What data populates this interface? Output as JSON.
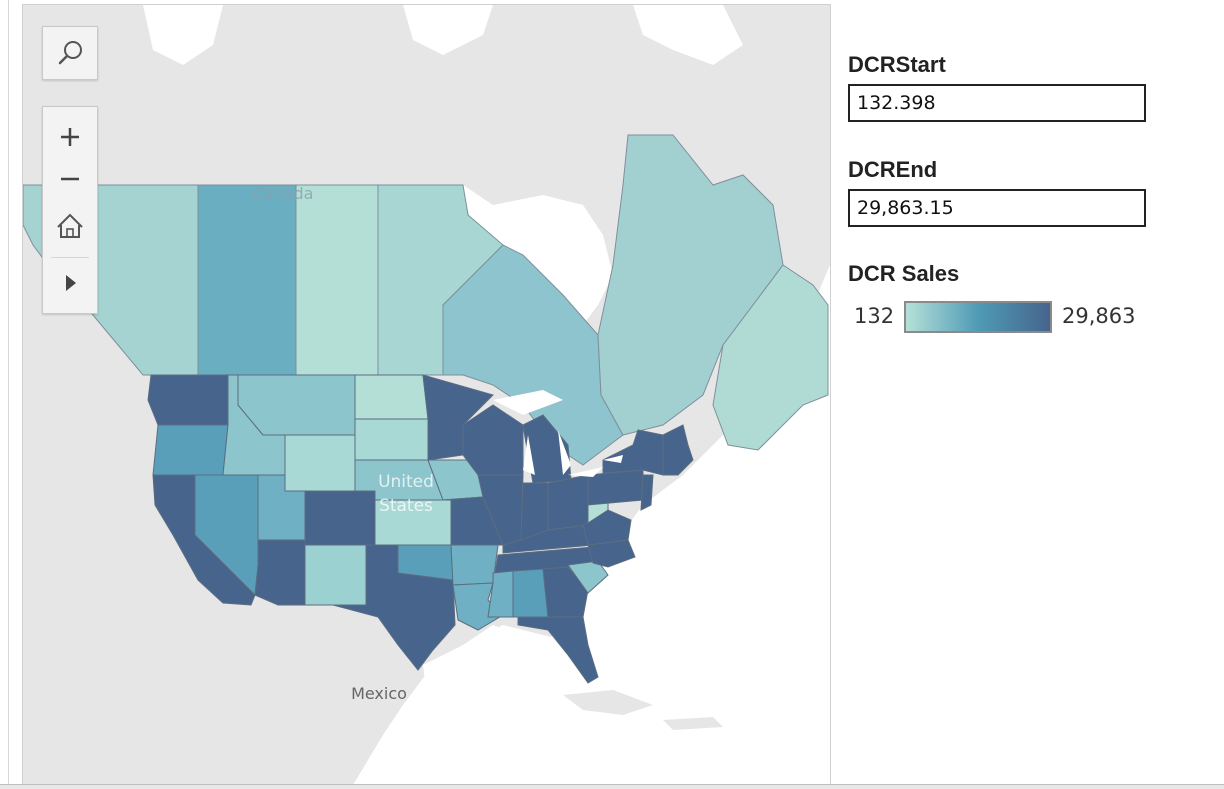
{
  "map": {
    "labels": {
      "canada": "Canada",
      "united_states": "United States",
      "us_line1": "United",
      "us_line2": "States",
      "mexico": "Mexico"
    },
    "color_scale": {
      "min_color": "#b6e0d8",
      "mid_color": "#4f9bb6",
      "max_color": "#46648c"
    },
    "regions": [
      {
        "id": "washington",
        "name": "Washington",
        "value": "high"
      },
      {
        "id": "oregon",
        "name": "Oregon",
        "value": "medium"
      },
      {
        "id": "california",
        "name": "California",
        "value": "high"
      },
      {
        "id": "nevada",
        "name": "Nevada",
        "value": "medium"
      },
      {
        "id": "idaho",
        "name": "Idaho",
        "value": "low"
      },
      {
        "id": "montana",
        "name": "Montana",
        "value": "low"
      },
      {
        "id": "wyoming",
        "name": "Wyoming",
        "value": "low"
      },
      {
        "id": "utah",
        "name": "Utah",
        "value": "medium"
      },
      {
        "id": "arizona",
        "name": "Arizona",
        "value": "high"
      },
      {
        "id": "colorado",
        "name": "Colorado",
        "value": "high"
      },
      {
        "id": "new-mexico",
        "name": "New Mexico",
        "value": "low"
      },
      {
        "id": "texas",
        "name": "Texas",
        "value": "high"
      },
      {
        "id": "north-dakota",
        "name": "North Dakota",
        "value": "low"
      },
      {
        "id": "south-dakota",
        "name": "South Dakota",
        "value": "low"
      },
      {
        "id": "nebraska",
        "name": "Nebraska",
        "value": "low"
      },
      {
        "id": "kansas",
        "name": "Kansas",
        "value": "low"
      },
      {
        "id": "oklahoma",
        "name": "Oklahoma",
        "value": "medium"
      },
      {
        "id": "minnesota",
        "name": "Minnesota",
        "value": "high"
      },
      {
        "id": "iowa",
        "name": "Iowa",
        "value": "low"
      },
      {
        "id": "missouri",
        "name": "Missouri",
        "value": "high"
      },
      {
        "id": "arkansas",
        "name": "Arkansas",
        "value": "low"
      },
      {
        "id": "louisiana",
        "name": "Louisiana",
        "value": "low"
      },
      {
        "id": "wisconsin",
        "name": "Wisconsin",
        "value": "high"
      },
      {
        "id": "illinois",
        "name": "Illinois",
        "value": "high"
      },
      {
        "id": "michigan",
        "name": "Michigan",
        "value": "high"
      },
      {
        "id": "indiana",
        "name": "Indiana",
        "value": "high"
      },
      {
        "id": "ohio",
        "name": "Ohio",
        "value": "high"
      },
      {
        "id": "kentucky",
        "name": "Kentucky",
        "value": "high"
      },
      {
        "id": "tennessee",
        "name": "Tennessee",
        "value": "high"
      },
      {
        "id": "mississippi",
        "name": "Mississippi",
        "value": "low"
      },
      {
        "id": "alabama",
        "name": "Alabama",
        "value": "medium"
      },
      {
        "id": "georgia",
        "name": "Georgia",
        "value": "high"
      },
      {
        "id": "florida",
        "name": "Florida",
        "value": "high"
      },
      {
        "id": "south-carolina",
        "name": "South Carolina",
        "value": "low"
      },
      {
        "id": "north-carolina",
        "name": "North Carolina",
        "value": "high"
      },
      {
        "id": "virginia",
        "name": "Virginia",
        "value": "high"
      },
      {
        "id": "west-virginia",
        "name": "West Virginia",
        "value": "low"
      },
      {
        "id": "pennsylvania",
        "name": "Pennsylvania",
        "value": "high"
      },
      {
        "id": "new-york",
        "name": "New York",
        "value": "high"
      },
      {
        "id": "new-jersey",
        "name": "New Jersey",
        "value": "high"
      },
      {
        "id": "new-england",
        "name": "New England",
        "value": "high"
      },
      {
        "id": "british-columbia",
        "name": "British Columbia",
        "value": "low"
      },
      {
        "id": "alberta",
        "name": "Alberta",
        "value": "medium"
      },
      {
        "id": "saskatchewan",
        "name": "Saskatchewan",
        "value": "low"
      },
      {
        "id": "manitoba",
        "name": "Manitoba",
        "value": "low"
      },
      {
        "id": "ontario",
        "name": "Ontario",
        "value": "low"
      },
      {
        "id": "quebec",
        "name": "Quebec",
        "value": "low"
      },
      {
        "id": "atlantic-canada",
        "name": "Atlantic Canada",
        "value": "low"
      }
    ]
  },
  "toolbar": {
    "search_icon": "magnifier-icon",
    "zoom_in_icon": "plus-icon",
    "zoom_out_icon": "minus-icon",
    "home_icon": "home-icon",
    "expand_icon": "play-triangle-icon"
  },
  "params": {
    "start": {
      "label": "DCRStart",
      "value": "132.398"
    },
    "end": {
      "label": "DCREnd",
      "value": "29,863.15"
    }
  },
  "legend": {
    "title": "DCR Sales",
    "min_label": "132",
    "max_label": "29,863"
  }
}
